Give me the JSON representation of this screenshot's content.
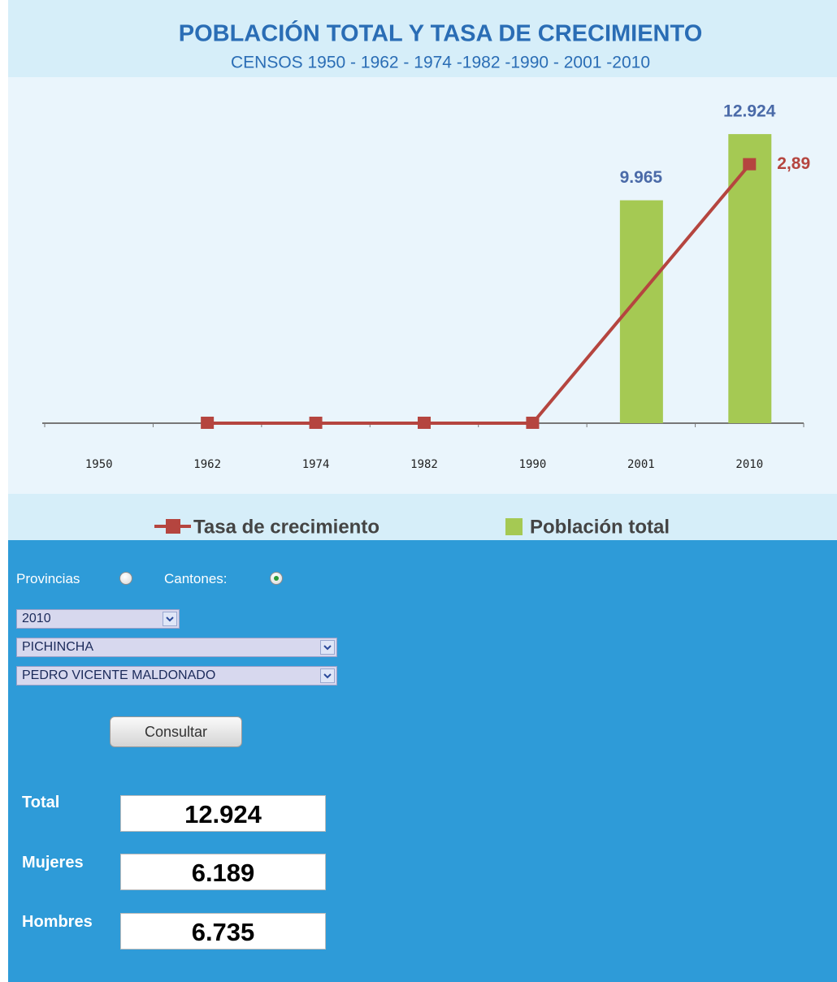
{
  "chart_data": {
    "type": "bar",
    "title": "POBLACIÓN TOTAL Y TASA DE CRECIMIENTO",
    "subtitle": "CENSOS 1950 - 1962 - 1974 -1982 -1990 - 2001 -2010",
    "categories": [
      "1950",
      "1962",
      "1974",
      "1982",
      "1990",
      "2001",
      "2010"
    ],
    "ylim": [
      0,
      13000
    ],
    "y2lim": [
      0,
      3.25
    ],
    "series": [
      {
        "name": "Población total",
        "type": "bar",
        "color": "#a5c953",
        "values": [
          null,
          null,
          null,
          null,
          null,
          9965,
          12924
        ],
        "value_labels": [
          null,
          null,
          null,
          null,
          null,
          "9.965",
          "12.924"
        ]
      },
      {
        "name": "Tasa de crecimiento",
        "type": "line",
        "axis": "y2",
        "color": "#b5453f",
        "x": [
          "1962",
          "1974",
          "1982",
          "1990",
          "2010"
        ],
        "values": [
          0,
          0,
          0,
          0,
          2.89
        ],
        "value_labels": [
          null,
          null,
          null,
          null,
          "2,89"
        ]
      }
    ]
  },
  "form": {
    "radios": [
      {
        "label": "Provincias",
        "selected": false
      },
      {
        "label": "Cantones:",
        "selected": true
      }
    ],
    "selects": [
      "2010",
      "PICHINCHA",
      "PEDRO VICENTE MALDONADO"
    ],
    "button": "Consultar",
    "results": [
      {
        "label": "Total",
        "value": "12.924"
      },
      {
        "label": "Mujeres",
        "value": "6.189"
      },
      {
        "label": "Hombres",
        "value": "6.735"
      }
    ]
  }
}
